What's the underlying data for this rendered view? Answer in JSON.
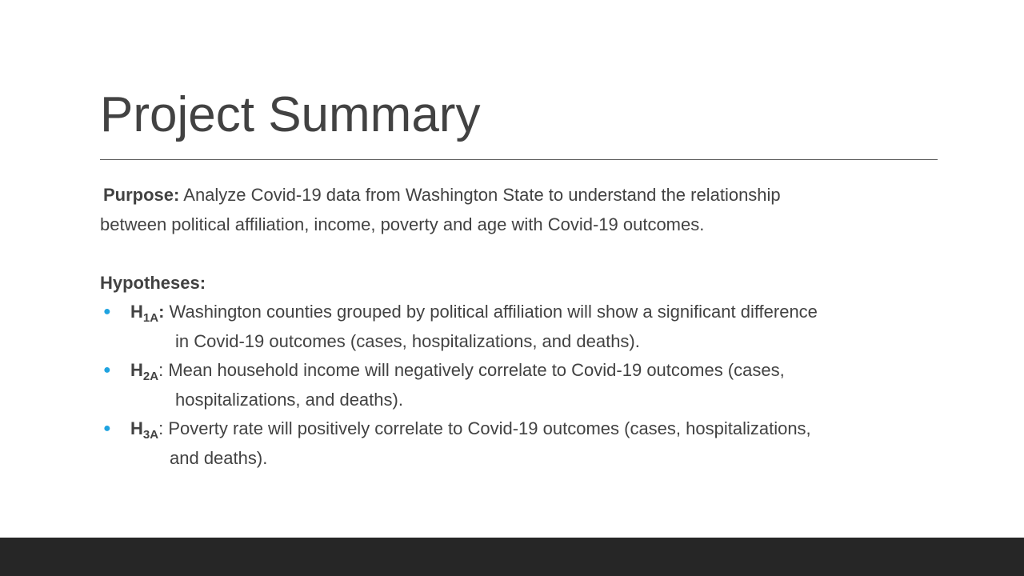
{
  "slide": {
    "title": "Project Summary",
    "purpose": {
      "label": "Purpose:",
      "line1": "Analyze Covid-19 data from Washington State to understand the relationship",
      "line2": "between political affiliation, income, poverty and age with Covid-19 outcomes."
    },
    "hypotheses": {
      "heading": "Hypotheses:",
      "items": [
        {
          "label": "H",
          "sub": "1A",
          "colon": ":",
          "line1": "Washington counties grouped by political affiliation will show a significant difference",
          "line2": "in Covid-19 outcomes (cases, hospitalizations, and deaths)."
        },
        {
          "label": "H",
          "sub": "2A",
          "colon": ":",
          "line1": "Mean household income will negatively correlate to Covid-19 outcomes (cases,",
          "line2": "hospitalizations, and deaths)."
        },
        {
          "label": "H",
          "sub": "3A",
          "colon": ":",
          "line1": "Poverty rate will positively correlate to Covid-19 outcomes (cases, hospitalizations,",
          "line2": "and deaths)."
        }
      ]
    },
    "colors": {
      "text": "#424242",
      "bullet": "#1fa3e0",
      "footer": "#262626",
      "rule": "#5f5f5f"
    }
  }
}
